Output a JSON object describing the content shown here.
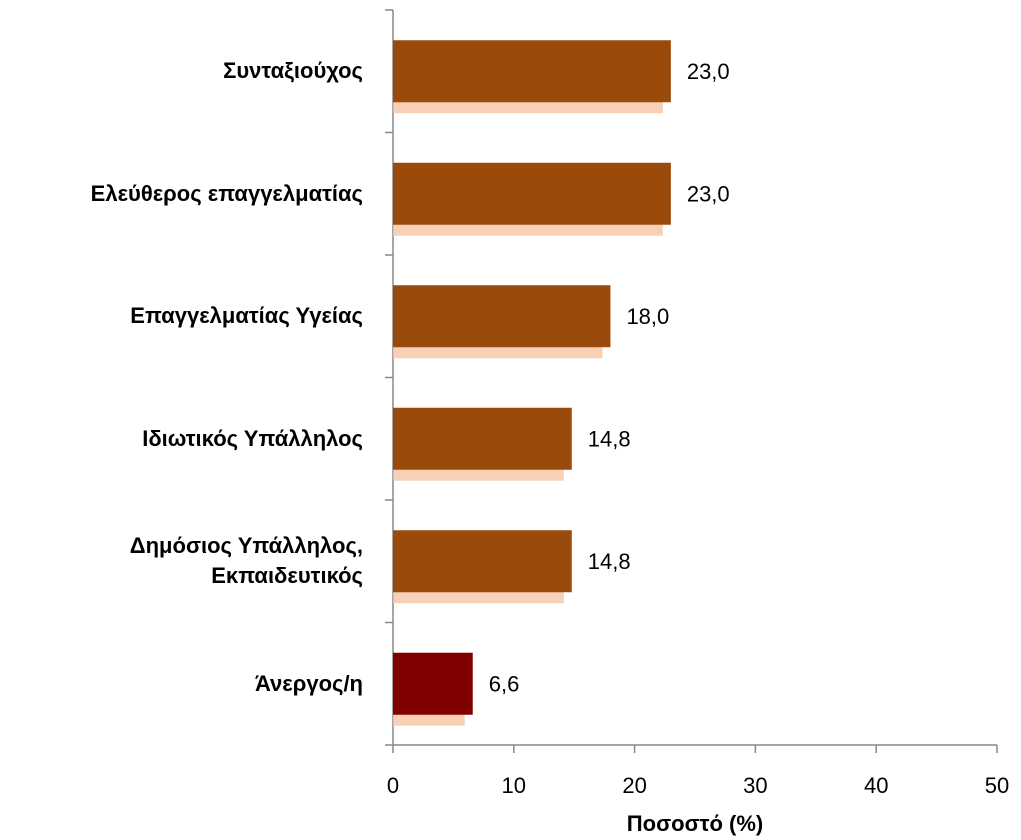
{
  "chart_data": {
    "type": "barh",
    "categories": [
      "Συνταξιούχος",
      "Ελεύθερος επαγγελματίας",
      "Επαγγελματίας Υγείας",
      "Ιδιωτικός Υπάλληλος",
      "Δημόσιος Υπάλληλος,\nΕκπαιδευτικός",
      "Άνεργος/η"
    ],
    "values": [
      23.0,
      23.0,
      18.0,
      14.8,
      14.8,
      6.6
    ],
    "value_labels": [
      "23,0",
      "23,0",
      "18,0",
      "14,8",
      "14,8",
      "6,6"
    ],
    "colors": [
      "#9a4a0a",
      "#9a4a0a",
      "#9a4a0a",
      "#9a4a0a",
      "#9a4a0a",
      "#800000"
    ],
    "xlabel": "Ποσοστό (%)",
    "xlim": [
      0,
      50
    ],
    "xticks": [
      0,
      10,
      20,
      30,
      40,
      50
    ]
  }
}
